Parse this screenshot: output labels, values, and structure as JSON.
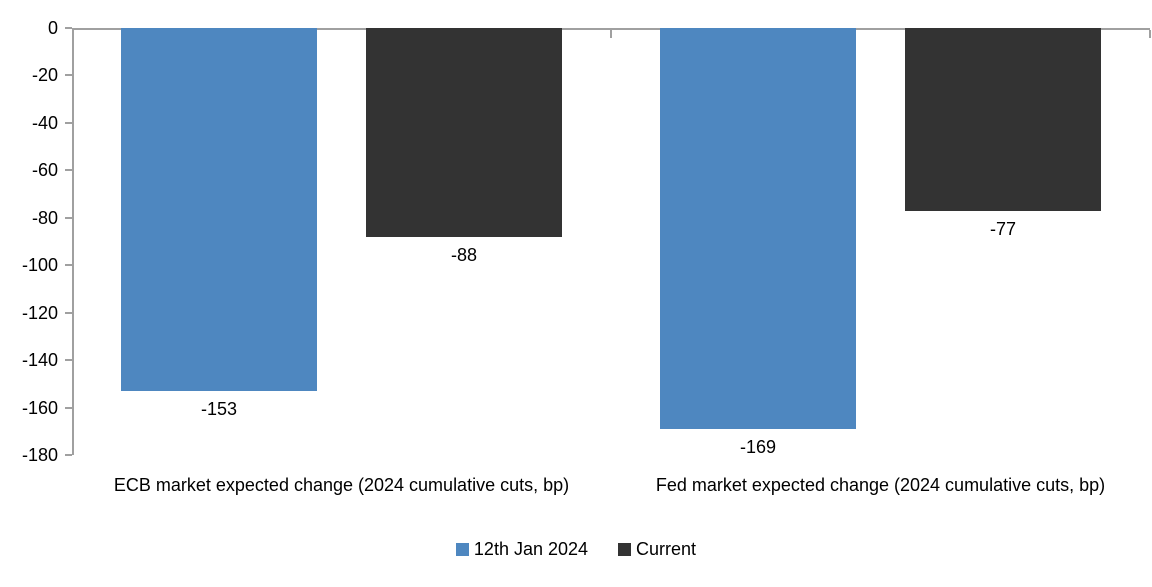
{
  "chart_data": {
    "type": "bar",
    "title": "",
    "categories": [
      "ECB market expected change (2024 cumulative cuts, bp)",
      "Fed market expected change (2024 cumulative cuts, bp)"
    ],
    "series": [
      {
        "name": "12th Jan 2024",
        "color": "#4E87C0",
        "values": [
          -153,
          -169
        ]
      },
      {
        "name": "Current",
        "color": "#333333",
        "values": [
          -88,
          -77
        ]
      }
    ],
    "data_labels_shown": true,
    "ylim": [
      -180,
      0
    ],
    "yticks": [
      0,
      -20,
      -40,
      -60,
      -80,
      -100,
      -120,
      -140,
      -160,
      -180
    ],
    "grid": false,
    "legend_position": "bottom",
    "axis_color": "#A0A0A0",
    "text_color": "#000000",
    "background_color": "#FFFFFF"
  }
}
